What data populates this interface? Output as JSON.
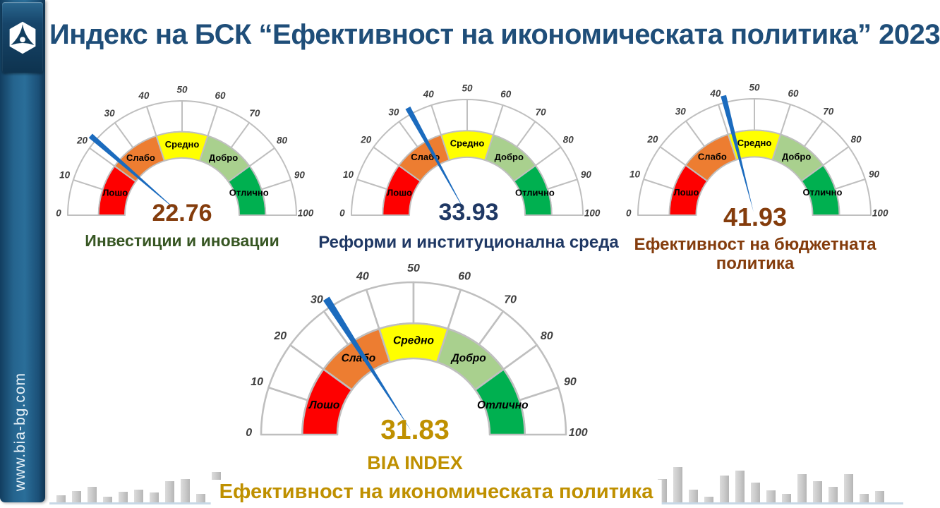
{
  "page": {
    "title": "Индекс на БСК “Ефективност на икономическата политика” 2023",
    "website": "www.bia-bg.com"
  },
  "colors": {
    "title": "#1F4E79",
    "needle": "#1B6BBE",
    "ring_stroke": "#BFBFBF",
    "tick_label": "#3F3F3F",
    "sidebar_blue": "#25648E",
    "gold": "#BF9000",
    "brown": "#843C0C",
    "navy": "#1F3864",
    "dark_green": "#375623"
  },
  "gauge_scale": {
    "min": 0,
    "max": 100,
    "ticks": [
      0,
      10,
      20,
      30,
      40,
      50,
      60,
      70,
      80,
      90,
      100
    ],
    "bands": [
      {
        "label": "Лошо",
        "from": 0,
        "to": 20,
        "color": "#FE0000"
      },
      {
        "label": "Слабо",
        "from": 20,
        "to": 40,
        "color": "#ED7D31"
      },
      {
        "label": "Средно",
        "from": 40,
        "to": 60,
        "color": "#FFFF00"
      },
      {
        "label": "Добро",
        "from": 60,
        "to": 80,
        "color": "#A9D08E"
      },
      {
        "label": "Отлично",
        "from": 80,
        "to": 100,
        "color": "#00B050"
      }
    ]
  },
  "chart_data": [
    {
      "type": "gauge",
      "value": 22.76,
      "display_value": "22.76",
      "title": "Инвестиции и иновации",
      "value_color": "#843C0C",
      "title_color": "#375623"
    },
    {
      "type": "gauge",
      "value": 33.93,
      "display_value": "33.93",
      "title": "Реформи и институционална среда",
      "value_color": "#1F3864",
      "title_color": "#1F3864"
    },
    {
      "type": "gauge",
      "value": 41.93,
      "display_value": "41.93",
      "title": "Ефективност на бюджетната политика",
      "value_color": "#843C0C",
      "title_color": "#843C0C"
    },
    {
      "type": "gauge",
      "value": 31.83,
      "display_value": "31.83",
      "subtitle": "BIA INDEX",
      "title": "Ефективност на икономическата политика",
      "value_color": "#BF9000",
      "title_color": "#BF9000"
    }
  ],
  "footer": {
    "bars_left_heights": [
      10,
      16,
      22,
      8,
      15,
      18,
      14,
      30,
      33,
      12,
      43
    ],
    "bars_right_heights": [
      33,
      50,
      18,
      8,
      38,
      45,
      28,
      17,
      12,
      40,
      30,
      22,
      40,
      12,
      16
    ]
  }
}
